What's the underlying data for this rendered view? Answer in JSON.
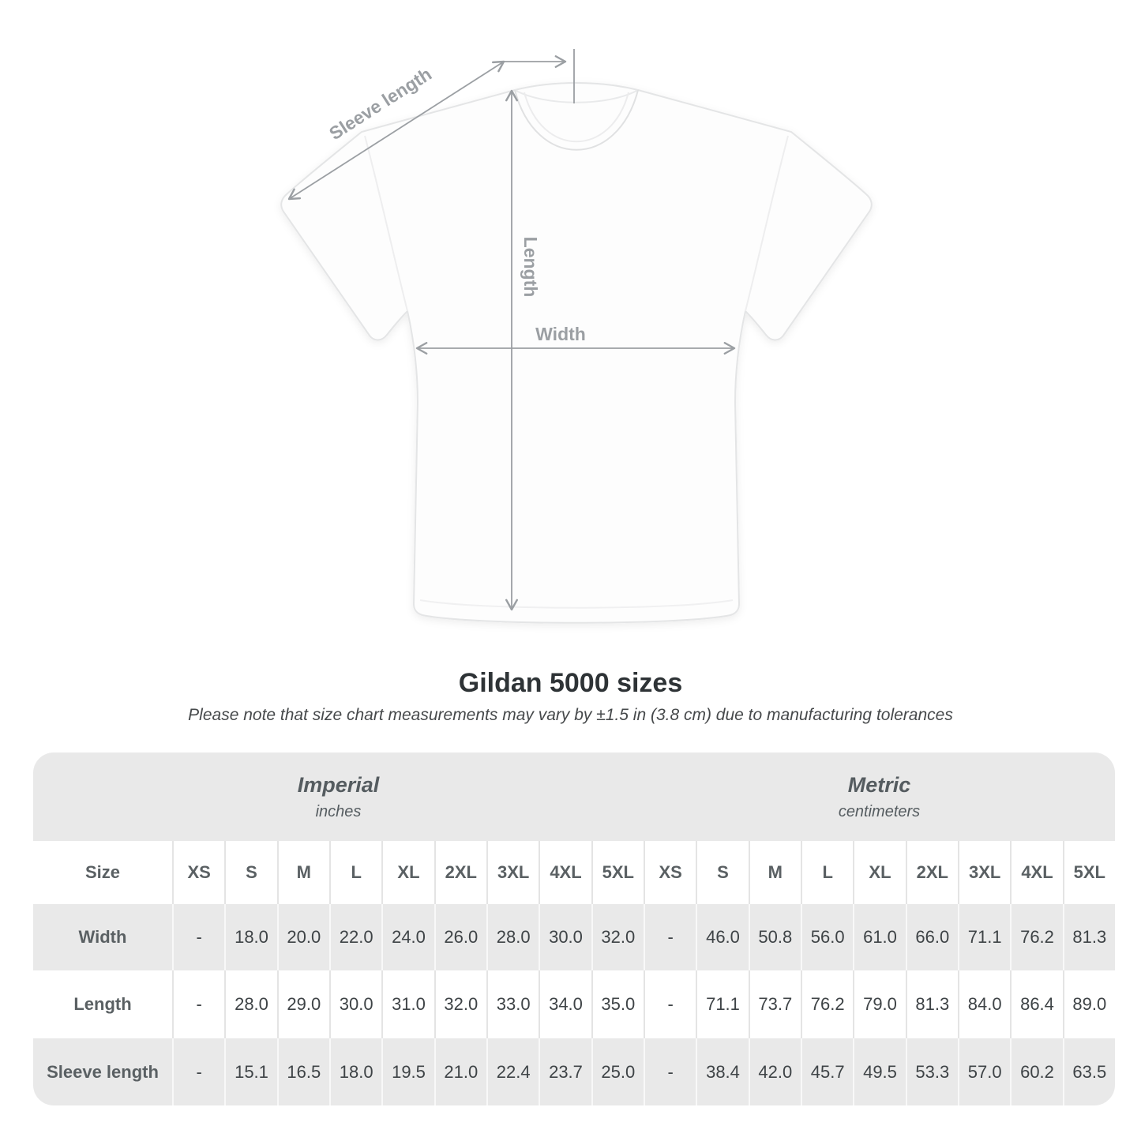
{
  "title": "Gildan 5000 sizes",
  "subtitle": "Please note that size chart measurements may vary by ±1.5 in (3.8 cm) due to manufacturing tolerances",
  "diagram": {
    "labels": {
      "sleeve_length": "Sleeve length",
      "length": "Length",
      "width": "Width"
    }
  },
  "colors": {
    "annotation": "#9b9fa3",
    "table_band": "#e9e9e9",
    "header_text": "#5a6063",
    "value_text": "#3e4346"
  },
  "table": {
    "size_header": "Size",
    "unit_groups": [
      {
        "name": "Imperial",
        "unit": "inches"
      },
      {
        "name": "Metric",
        "unit": "centimeters"
      }
    ],
    "sizes": [
      "XS",
      "S",
      "M",
      "L",
      "XL",
      "2XL",
      "3XL",
      "4XL",
      "5XL"
    ],
    "rows": [
      {
        "label": "Width",
        "imperial": [
          "-",
          "18.0",
          "20.0",
          "22.0",
          "24.0",
          "26.0",
          "28.0",
          "30.0",
          "32.0"
        ],
        "metric": [
          "-",
          "46.0",
          "50.8",
          "56.0",
          "61.0",
          "66.0",
          "71.1",
          "76.2",
          "81.3"
        ]
      },
      {
        "label": "Length",
        "imperial": [
          "-",
          "28.0",
          "29.0",
          "30.0",
          "31.0",
          "32.0",
          "33.0",
          "34.0",
          "35.0"
        ],
        "metric": [
          "-",
          "71.1",
          "73.7",
          "76.2",
          "79.0",
          "81.3",
          "84.0",
          "86.4",
          "89.0"
        ]
      },
      {
        "label": "Sleeve length",
        "imperial": [
          "-",
          "15.1",
          "16.5",
          "18.0",
          "19.5",
          "21.0",
          "22.4",
          "23.7",
          "25.0"
        ],
        "metric": [
          "-",
          "38.4",
          "42.0",
          "45.7",
          "49.5",
          "53.3",
          "57.0",
          "60.2",
          "63.5"
        ]
      }
    ]
  }
}
